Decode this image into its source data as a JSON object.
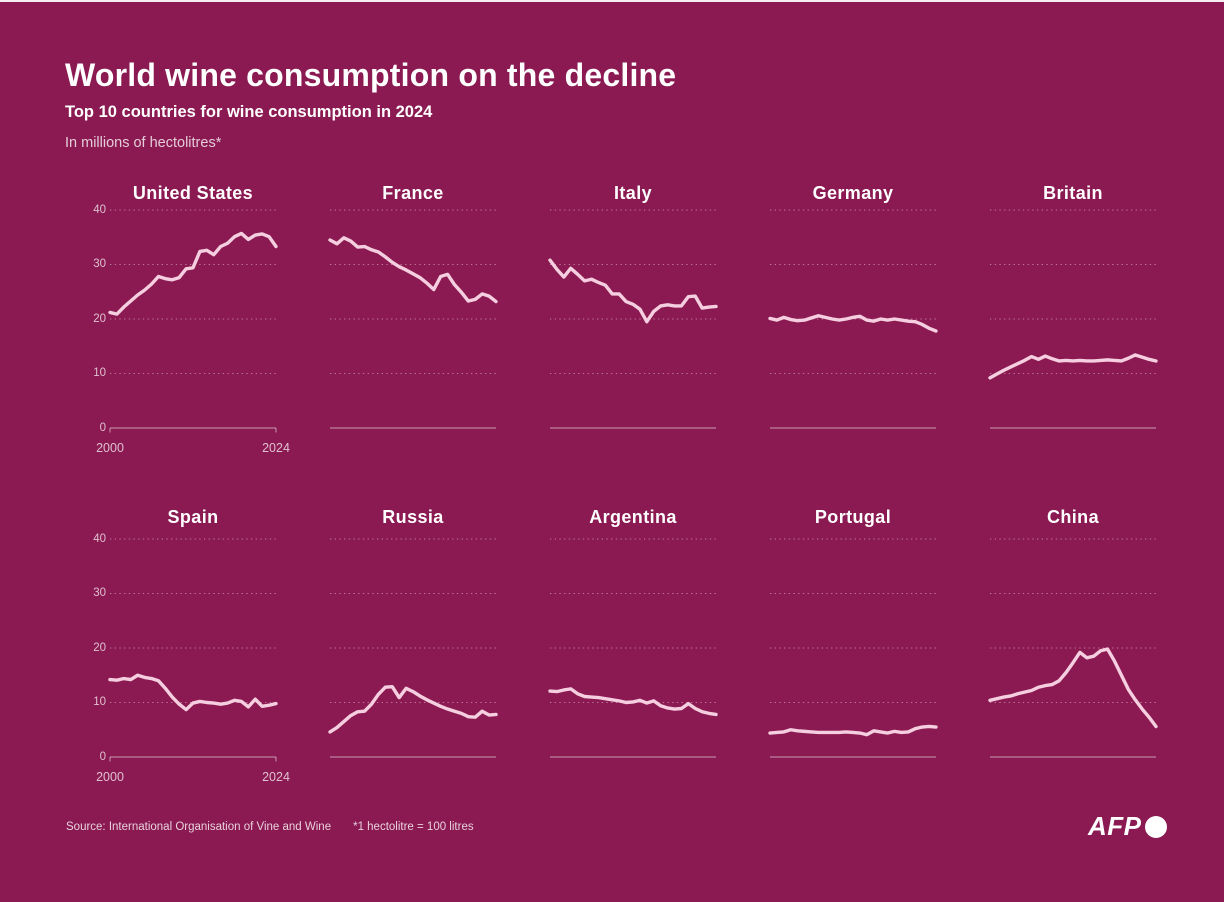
{
  "header": {
    "title": "World wine consumption on the decline",
    "subtitle": "Top 10 countries for wine consumption in 2024",
    "unit_note": "In millions of hectolitres*"
  },
  "footer": {
    "source": "Source: International Organisation of Vine and Wine",
    "footnote": "*1 hectolitre = 100 litres",
    "logo_text": "AFP"
  },
  "colors": {
    "background": "#8b1a52",
    "line": "#f5cfe0",
    "grid": "rgba(255,255,255,0.42)",
    "axis": "rgba(255,255,255,0.45)",
    "tick_text": "rgba(255,255,255,0.72)",
    "title_text": "#ffffff"
  },
  "chart_data": {
    "type": "line",
    "title": "Top 10 countries for wine consumption in 2024",
    "unit": "millions of hectolitres",
    "x": {
      "start": 2000,
      "end": 2024,
      "step": 1,
      "tick_labels": [
        "2000",
        "2024"
      ]
    },
    "ylim": [
      0,
      40
    ],
    "y_ticks": [
      0,
      10,
      20,
      30,
      40
    ],
    "grid": "dotted horizontal, solid zero axis",
    "layout": {
      "rows": 2,
      "cols": 5,
      "y_axis_labels_on_first_column_only": true
    },
    "series": [
      {
        "name": "United States",
        "values": [
          21.2,
          20.9,
          22.2,
          23.3,
          24.4,
          25.3,
          26.4,
          27.8,
          27.4,
          27.2,
          27.6,
          29.2,
          29.4,
          32.4,
          32.6,
          31.8,
          33.3,
          33.9,
          35.1,
          35.7,
          34.6,
          35.4,
          35.6,
          35.1,
          33.3
        ]
      },
      {
        "name": "France",
        "values": [
          34.5,
          33.8,
          34.9,
          34.3,
          33.2,
          33.3,
          32.7,
          32.3,
          31.4,
          30.4,
          29.6,
          29.0,
          28.3,
          27.6,
          26.6,
          25.4,
          27.8,
          28.2,
          26.3,
          24.9,
          23.3,
          23.6,
          24.6,
          24.2,
          23.2
        ]
      },
      {
        "name": "Italy",
        "values": [
          30.8,
          29.1,
          27.7,
          29.3,
          28.2,
          27.0,
          27.3,
          26.7,
          26.2,
          24.6,
          24.6,
          23.2,
          22.7,
          21.8,
          19.5,
          21.4,
          22.4,
          22.6,
          22.4,
          22.4,
          24.1,
          24.2,
          22.0,
          22.2,
          22.3
        ]
      },
      {
        "name": "Germany",
        "values": [
          20.1,
          19.8,
          20.3,
          19.9,
          19.7,
          19.8,
          20.2,
          20.6,
          20.3,
          20.0,
          19.8,
          20.0,
          20.3,
          20.5,
          19.8,
          19.6,
          20.0,
          19.8,
          20.0,
          19.8,
          19.6,
          19.5,
          19.0,
          18.3,
          17.8
        ]
      },
      {
        "name": "Britain",
        "values": [
          9.2,
          9.9,
          10.6,
          11.2,
          11.8,
          12.4,
          13.1,
          12.6,
          13.2,
          12.7,
          12.3,
          12.4,
          12.3,
          12.4,
          12.3,
          12.3,
          12.4,
          12.5,
          12.4,
          12.3,
          12.8,
          13.4,
          13.0,
          12.6,
          12.3
        ]
      },
      {
        "name": "Spain",
        "values": [
          14.2,
          14.1,
          14.4,
          14.2,
          15.0,
          14.6,
          14.4,
          14.0,
          12.6,
          11.0,
          9.7,
          8.7,
          9.9,
          10.2,
          10.0,
          9.9,
          9.7,
          9.9,
          10.4,
          10.2,
          9.2,
          10.6,
          9.3,
          9.5,
          9.8
        ]
      },
      {
        "name": "Russia",
        "values": [
          4.6,
          5.4,
          6.5,
          7.6,
          8.3,
          8.4,
          9.7,
          11.5,
          12.8,
          12.9,
          10.9,
          12.6,
          12.0,
          11.2,
          10.5,
          9.9,
          9.3,
          8.8,
          8.4,
          8.0,
          7.4,
          7.3,
          8.4,
          7.7,
          7.8
        ]
      },
      {
        "name": "Argentina",
        "values": [
          12.1,
          12.0,
          12.3,
          12.5,
          11.6,
          11.1,
          11.0,
          10.9,
          10.7,
          10.5,
          10.3,
          10.0,
          10.1,
          10.4,
          9.9,
          10.3,
          9.4,
          9.0,
          8.8,
          8.9,
          9.8,
          8.9,
          8.3,
          8.0,
          7.8
        ]
      },
      {
        "name": "Portugal",
        "values": [
          4.4,
          4.5,
          4.6,
          5.0,
          4.8,
          4.7,
          4.6,
          4.5,
          4.5,
          4.5,
          4.5,
          4.6,
          4.5,
          4.4,
          4.1,
          4.8,
          4.6,
          4.4,
          4.7,
          4.5,
          4.6,
          5.2,
          5.5,
          5.6,
          5.5
        ]
      },
      {
        "name": "China",
        "values": [
          10.4,
          10.7,
          11.0,
          11.2,
          11.6,
          11.9,
          12.2,
          12.8,
          13.1,
          13.3,
          14.0,
          15.5,
          17.3,
          19.2,
          18.2,
          18.5,
          19.5,
          19.8,
          17.6,
          15.0,
          12.4,
          10.5,
          8.8,
          7.3,
          5.6
        ]
      }
    ]
  }
}
